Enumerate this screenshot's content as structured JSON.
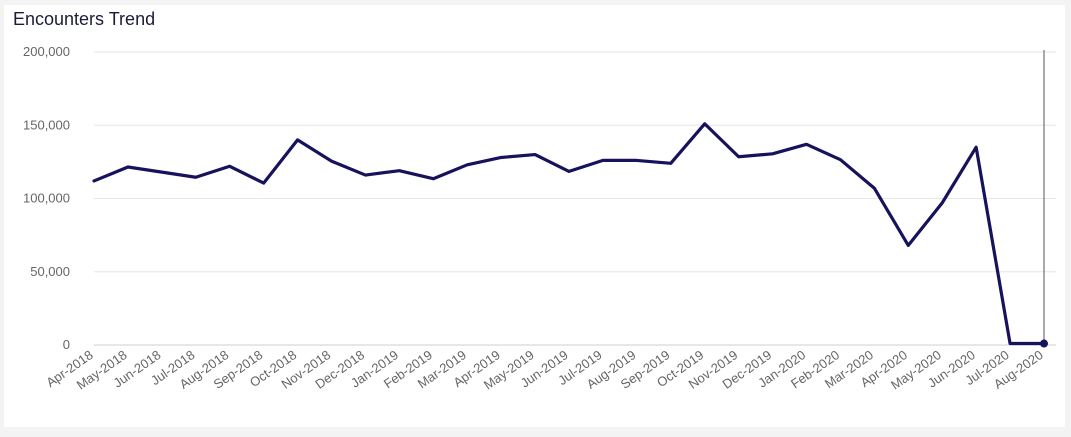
{
  "chart_data": {
    "type": "line",
    "title": "Encounters Trend",
    "xlabel": "",
    "ylabel": "",
    "ylim": [
      0,
      200000
    ],
    "yticks": [
      "0",
      "50,000",
      "100,000",
      "150,000",
      "200,000"
    ],
    "ytick_values": [
      0,
      50000,
      100000,
      150000,
      200000
    ],
    "grid": true,
    "line_color": "#16125c",
    "categories": [
      "Apr-2018",
      "May-2018",
      "Jun-2018",
      "Jul-2018",
      "Aug-2018",
      "Sep-2018",
      "Oct-2018",
      "Nov-2018",
      "Dec-2018",
      "Jan-2019",
      "Feb-2019",
      "Mar-2019",
      "Apr-2019",
      "May-2019",
      "Jun-2019",
      "Jul-2019",
      "Aug-2019",
      "Sep-2019",
      "Oct-2019",
      "Nov-2019",
      "Dec-2019",
      "Jan-2020",
      "Feb-2020",
      "Mar-2020",
      "Apr-2020",
      "May-2020",
      "Jun-2020",
      "Jul-2020",
      "Aug-2020"
    ],
    "values": [
      112000,
      121500,
      118000,
      114500,
      122000,
      110500,
      140000,
      125500,
      116000,
      119000,
      113500,
      123000,
      128000,
      130000,
      118500,
      126000,
      126000,
      124000,
      151000,
      128500,
      130500,
      137000,
      126500,
      107000,
      68000,
      97000,
      135000,
      1000,
      1000
    ],
    "highlight_index": 28
  }
}
